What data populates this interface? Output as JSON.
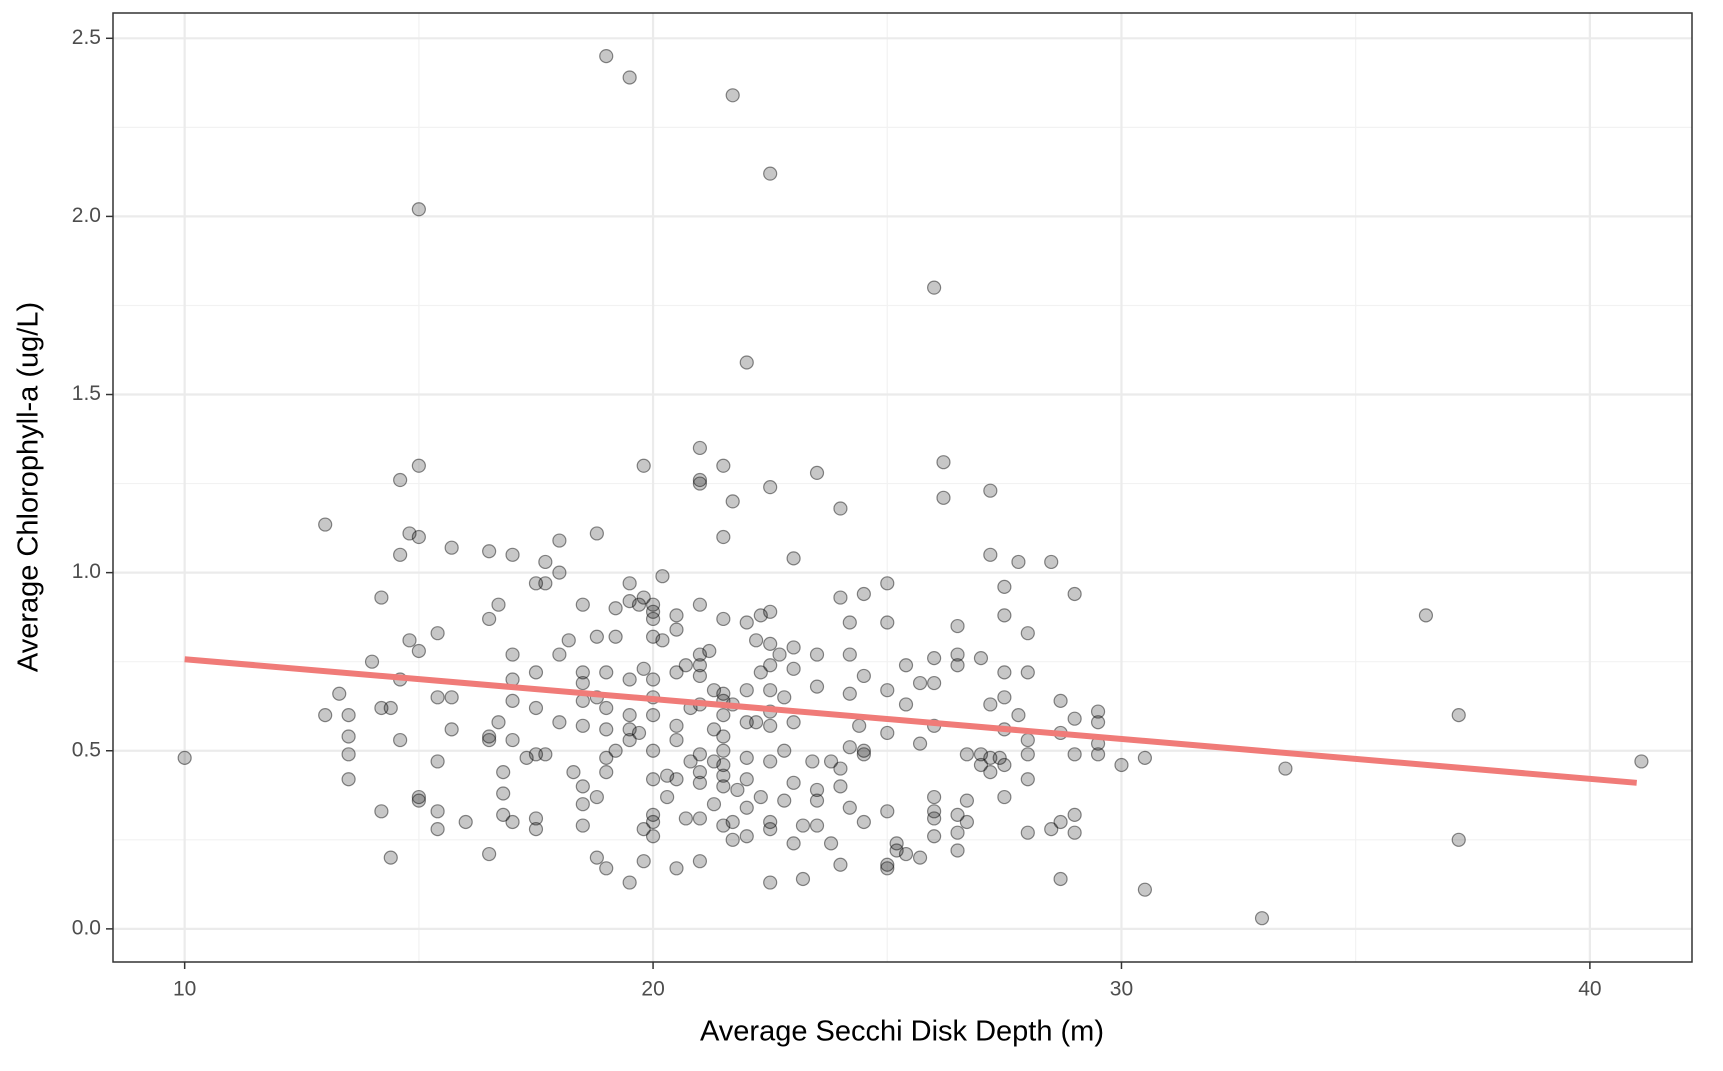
{
  "chart_data": {
    "type": "scatter",
    "x_label": "Average Secchi Disk Depth (m)",
    "y_label": "Average Chlorophyll-a (ug/L)",
    "color": "#000000",
    "xlim": [
      8.47,
      42.18
    ],
    "ylim": [
      -0.093,
      2.571
    ],
    "xticks": [
      10,
      20,
      30,
      40
    ],
    "yticks": [
      {
        "value": 0,
        "label": "0.0"
      },
      0.5,
      {
        "value": 1,
        "label": "1.0"
      },
      1.5,
      {
        "value": 2,
        "label": "2.0"
      },
      2.5
    ],
    "minor_xticks": [
      15,
      25,
      35
    ],
    "minor_yticks": [
      0.25,
      0.75,
      1.25,
      1.75,
      2.25
    ],
    "grid": true,
    "trend": {
      "color": "#f07b78",
      "x": [
        10,
        41
      ],
      "values": [
        0.757,
        0.41
      ]
    },
    "x": [
      10,
      13,
      13,
      13.3,
      13.5,
      13.5,
      13.5,
      13.5,
      14,
      14.2,
      14.2,
      14.2,
      14.4,
      14.4,
      14.6,
      14.6,
      14.6,
      14.6,
      14.8,
      14.8,
      15,
      15,
      15,
      15,
      15,
      15,
      15.4,
      15.4,
      15.4,
      15.4,
      15.4,
      15.7,
      15.7,
      15.7,
      16,
      16.5,
      16.5,
      16.5,
      16.5,
      16.5,
      16.7,
      16.7,
      16.8,
      16.8,
      16.8,
      17,
      17,
      17,
      17,
      17,
      17,
      17.3,
      17.5,
      17.5,
      17.5,
      17.5,
      17.5,
      17.5,
      17.7,
      17.7,
      17.7,
      18,
      18,
      18,
      18,
      18.2,
      18.3,
      18.5,
      18.5,
      18.5,
      18.5,
      18.5,
      18.5,
      18.5,
      18.5,
      18.8,
      18.8,
      18.8,
      18.8,
      18.8,
      19,
      19,
      19,
      19,
      19,
      19,
      19,
      19.2,
      19.2,
      19.2,
      19.5,
      19.5,
      19.5,
      19.5,
      19.5,
      19.5,
      19.5,
      19.5,
      19.7,
      19.7,
      19.8,
      19.8,
      19.8,
      19.8,
      19.8,
      20,
      20,
      20,
      20,
      20,
      20,
      20,
      20,
      20,
      20,
      20,
      20,
      20.2,
      20.2,
      20.3,
      20.3,
      20.5,
      20.5,
      20.5,
      20.5,
      20.5,
      20.5,
      20.5,
      20.7,
      20.7,
      20.8,
      20.8,
      21,
      21,
      21,
      21,
      21,
      21,
      21,
      21,
      21,
      21,
      21,
      21,
      21,
      21.2,
      21.3,
      21.3,
      21.3,
      21.3,
      21.5,
      21.5,
      21.5,
      21.5,
      21.5,
      21.5,
      21.5,
      21.5,
      21.5,
      21.5,
      21.5,
      21.5,
      21.7,
      21.7,
      21.7,
      21.7,
      21.7,
      21.8,
      22,
      22,
      22,
      22,
      22,
      22,
      22,
      22,
      22.2,
      22.2,
      22.3,
      22.3,
      22.3,
      22.5,
      22.5,
      22.5,
      22.5,
      22.5,
      22.5,
      22.5,
      22.5,
      22.5,
      22.5,
      22.5,
      22.5,
      22.7,
      22.8,
      22.8,
      22.8,
      23,
      23,
      23,
      23,
      23,
      23,
      23.2,
      23.2,
      23.4,
      23.5,
      23.5,
      23.5,
      23.5,
      23.5,
      23.5,
      23.8,
      23.8,
      24,
      24,
      24,
      24,
      24,
      24.2,
      24.2,
      24.2,
      24.2,
      24.2,
      24.4,
      24.5,
      24.5,
      24.5,
      24.5,
      24.5,
      25,
      25,
      25,
      25,
      25,
      25,
      25,
      25.2,
      25.2,
      25.4,
      25.4,
      25.4,
      25.7,
      25.7,
      25.7,
      26,
      26,
      26,
      26,
      26,
      26,
      26,
      26,
      26.2,
      26.2,
      26.5,
      26.5,
      26.5,
      26.5,
      26.5,
      26.5,
      26.7,
      26.7,
      26.7,
      27,
      27,
      27,
      27.2,
      27.2,
      27.2,
      27.2,
      27.2,
      27.4,
      27.5,
      27.5,
      27.5,
      27.5,
      27.5,
      27.5,
      27.5,
      27.8,
      27.8,
      28,
      28,
      28,
      28,
      28,
      28,
      28.5,
      28.5,
      28.7,
      28.7,
      28.7,
      28.7,
      29,
      29,
      29,
      29,
      29,
      29.5,
      29.5,
      29.5,
      29.5,
      30,
      30.5,
      30.5,
      33,
      33.5,
      36.5,
      37.2,
      37.2,
      41.1
    ],
    "values": [
      0.48,
      1.135,
      0.6,
      0.66,
      0.6,
      0.54,
      0.49,
      0.42,
      0.75,
      0.93,
      0.33,
      0.62,
      0.62,
      0.2,
      1.26,
      1.05,
      0.7,
      0.53,
      1.11,
      0.81,
      2.02,
      1.3,
      1.1,
      0.78,
      0.37,
      0.36,
      0.83,
      0.65,
      0.47,
      0.33,
      0.28,
      1.07,
      0.65,
      0.56,
      0.3,
      1.06,
      0.87,
      0.54,
      0.53,
      0.21,
      0.91,
      0.58,
      0.44,
      0.38,
      0.32,
      1.05,
      0.77,
      0.7,
      0.64,
      0.53,
      0.3,
      0.48,
      0.97,
      0.72,
      0.62,
      0.49,
      0.31,
      0.28,
      1.03,
      0.97,
      0.49,
      1.09,
      1.0,
      0.77,
      0.58,
      0.81,
      0.44,
      0.91,
      0.72,
      0.69,
      0.64,
      0.57,
      0.4,
      0.35,
      0.29,
      1.11,
      0.82,
      0.65,
      0.37,
      0.2,
      2.45,
      0.72,
      0.62,
      0.56,
      0.48,
      0.44,
      0.17,
      0.9,
      0.82,
      0.5,
      2.39,
      0.97,
      0.92,
      0.7,
      0.6,
      0.56,
      0.53,
      0.13,
      0.91,
      0.55,
      1.3,
      0.93,
      0.73,
      0.28,
      0.19,
      0.91,
      0.89,
      0.87,
      0.82,
      0.7,
      0.65,
      0.6,
      0.5,
      0.42,
      0.32,
      0.3,
      0.26,
      0.99,
      0.81,
      0.43,
      0.37,
      0.88,
      0.84,
      0.72,
      0.57,
      0.53,
      0.42,
      0.17,
      0.74,
      0.31,
      0.62,
      0.47,
      1.35,
      1.26,
      1.25,
      0.91,
      0.77,
      0.74,
      0.71,
      0.63,
      0.49,
      0.44,
      0.41,
      0.31,
      0.19,
      0.78,
      0.67,
      0.56,
      0.47,
      0.35,
      1.3,
      1.1,
      0.87,
      0.66,
      0.64,
      0.6,
      0.54,
      0.5,
      0.46,
      0.43,
      0.4,
      0.29,
      2.34,
      1.2,
      0.63,
      0.3,
      0.25,
      0.39,
      1.59,
      0.86,
      0.67,
      0.58,
      0.48,
      0.42,
      0.34,
      0.26,
      0.81,
      0.58,
      0.88,
      0.72,
      0.37,
      2.12,
      1.24,
      0.89,
      0.8,
      0.74,
      0.67,
      0.61,
      0.57,
      0.47,
      0.3,
      0.28,
      0.13,
      0.77,
      0.65,
      0.5,
      0.36,
      1.04,
      0.79,
      0.73,
      0.58,
      0.41,
      0.24,
      0.29,
      0.14,
      0.47,
      1.28,
      0.77,
      0.68,
      0.39,
      0.36,
      0.29,
      0.47,
      0.24,
      1.18,
      0.93,
      0.45,
      0.4,
      0.18,
      0.86,
      0.77,
      0.66,
      0.51,
      0.34,
      0.57,
      0.94,
      0.71,
      0.5,
      0.49,
      0.3,
      0.97,
      0.86,
      0.67,
      0.55,
      0.33,
      0.18,
      0.17,
      0.24,
      0.22,
      0.74,
      0.63,
      0.21,
      0.69,
      0.52,
      0.2,
      1.8,
      0.76,
      0.69,
      0.57,
      0.37,
      0.33,
      0.31,
      0.26,
      1.31,
      1.21,
      0.85,
      0.77,
      0.74,
      0.32,
      0.27,
      0.22,
      0.49,
      0.36,
      0.3,
      0.76,
      0.49,
      0.46,
      1.23,
      1.05,
      0.63,
      0.48,
      0.44,
      0.48,
      0.96,
      0.88,
      0.72,
      0.65,
      0.56,
      0.46,
      0.37,
      1.03,
      0.6,
      0.83,
      0.72,
      0.53,
      0.49,
      0.42,
      0.27,
      1.03,
      0.28,
      0.64,
      0.55,
      0.3,
      0.14,
      0.94,
      0.59,
      0.49,
      0.32,
      0.27,
      0.61,
      0.58,
      0.52,
      0.49,
      0.46,
      0.48,
      0.11,
      0.03,
      0.45,
      0.88,
      0.6,
      0.25,
      0.47
    ]
  }
}
